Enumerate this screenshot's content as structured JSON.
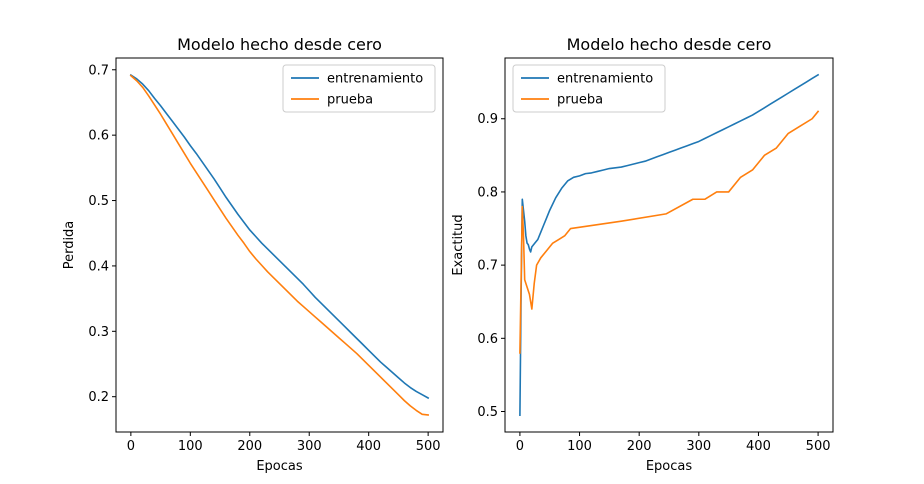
{
  "chart_data": [
    {
      "type": "line",
      "title": "Modelo hecho desde cero",
      "xlabel": "Epocas",
      "ylabel": "Perdida",
      "xlim": [
        -25,
        525
      ],
      "ylim": [
        0.146,
        0.718
      ],
      "xticks": [
        0,
        100,
        200,
        300,
        400,
        500
      ],
      "yticks": [
        0.2,
        0.3,
        0.4,
        0.5,
        0.6,
        0.7
      ],
      "xtick_labels": [
        "0",
        "100",
        "200",
        "300",
        "400",
        "500"
      ],
      "ytick_labels": [
        "0.2",
        "0.3",
        "0.4",
        "0.5",
        "0.6",
        "0.7"
      ],
      "grid": false,
      "legend_position": "top-right",
      "series": [
        {
          "name": "entrenamiento",
          "color": "#1f77b4",
          "x": [
            0,
            10,
            20,
            30,
            40,
            50,
            60,
            70,
            80,
            90,
            100,
            110,
            120,
            130,
            140,
            150,
            160,
            170,
            180,
            190,
            200,
            210,
            220,
            230,
            240,
            250,
            260,
            270,
            280,
            290,
            300,
            310,
            320,
            330,
            340,
            350,
            360,
            370,
            380,
            390,
            400,
            410,
            420,
            430,
            440,
            450,
            460,
            470,
            480,
            490,
            500
          ],
          "y": [
            0.692,
            0.686,
            0.678,
            0.668,
            0.656,
            0.645,
            0.633,
            0.621,
            0.609,
            0.597,
            0.584,
            0.572,
            0.559,
            0.546,
            0.533,
            0.519,
            0.505,
            0.492,
            0.479,
            0.467,
            0.455,
            0.445,
            0.435,
            0.426,
            0.417,
            0.408,
            0.399,
            0.39,
            0.381,
            0.372,
            0.362,
            0.352,
            0.343,
            0.334,
            0.325,
            0.316,
            0.307,
            0.298,
            0.289,
            0.28,
            0.271,
            0.262,
            0.253,
            0.245,
            0.237,
            0.229,
            0.221,
            0.214,
            0.208,
            0.203,
            0.198
          ]
        },
        {
          "name": "prueba",
          "color": "#ff7f0e",
          "x": [
            0,
            10,
            20,
            30,
            40,
            50,
            60,
            70,
            80,
            90,
            100,
            110,
            120,
            130,
            140,
            150,
            160,
            170,
            180,
            190,
            200,
            210,
            220,
            230,
            240,
            250,
            260,
            270,
            280,
            290,
            300,
            310,
            320,
            330,
            340,
            350,
            360,
            370,
            380,
            390,
            400,
            410,
            420,
            430,
            440,
            450,
            460,
            470,
            480,
            490,
            500
          ],
          "y": [
            0.691,
            0.683,
            0.673,
            0.66,
            0.646,
            0.632,
            0.617,
            0.602,
            0.587,
            0.572,
            0.557,
            0.543,
            0.529,
            0.515,
            0.501,
            0.487,
            0.473,
            0.46,
            0.447,
            0.435,
            0.422,
            0.411,
            0.401,
            0.391,
            0.382,
            0.373,
            0.364,
            0.355,
            0.346,
            0.338,
            0.33,
            0.322,
            0.314,
            0.306,
            0.298,
            0.29,
            0.282,
            0.274,
            0.266,
            0.257,
            0.248,
            0.239,
            0.23,
            0.221,
            0.212,
            0.203,
            0.194,
            0.186,
            0.179,
            0.173,
            0.172
          ]
        }
      ]
    },
    {
      "type": "line",
      "title": "Modelo hecho desde cero",
      "xlabel": "Epocas",
      "ylabel": "Exactitud",
      "xlim": [
        -25,
        525
      ],
      "ylim": [
        0.472,
        0.983
      ],
      "xticks": [
        0,
        100,
        200,
        300,
        400,
        500
      ],
      "yticks": [
        0.5,
        0.6,
        0.7,
        0.8,
        0.9
      ],
      "xtick_labels": [
        "0",
        "100",
        "200",
        "300",
        "400",
        "500"
      ],
      "ytick_labels": [
        "0.5",
        "0.6",
        "0.7",
        "0.8",
        "0.9"
      ],
      "grid": false,
      "legend_position": "top-left",
      "series": [
        {
          "name": "entrenamiento",
          "color": "#1f77b4",
          "x": [
            0,
            2,
            4,
            6,
            8,
            10,
            12,
            14,
            16,
            18,
            20,
            25,
            30,
            35,
            40,
            45,
            50,
            60,
            70,
            80,
            90,
            100,
            110,
            120,
            130,
            140,
            150,
            160,
            170,
            180,
            190,
            200,
            210,
            220,
            230,
            240,
            250,
            260,
            270,
            280,
            290,
            300,
            310,
            320,
            330,
            340,
            350,
            360,
            370,
            380,
            390,
            400,
            410,
            420,
            430,
            440,
            450,
            460,
            470,
            480,
            490,
            500
          ],
          "y": [
            0.495,
            0.66,
            0.79,
            0.775,
            0.76,
            0.74,
            0.73,
            0.728,
            0.722,
            0.718,
            0.725,
            0.73,
            0.735,
            0.745,
            0.755,
            0.765,
            0.775,
            0.792,
            0.805,
            0.815,
            0.82,
            0.822,
            0.825,
            0.826,
            0.828,
            0.83,
            0.832,
            0.833,
            0.834,
            0.836,
            0.838,
            0.84,
            0.842,
            0.845,
            0.848,
            0.851,
            0.854,
            0.857,
            0.86,
            0.863,
            0.866,
            0.869,
            0.873,
            0.877,
            0.881,
            0.885,
            0.889,
            0.893,
            0.897,
            0.901,
            0.905,
            0.91,
            0.915,
            0.92,
            0.925,
            0.93,
            0.935,
            0.94,
            0.945,
            0.95,
            0.955,
            0.96
          ]
        },
        {
          "name": "prueba",
          "color": "#ff7f0e",
          "x": [
            0,
            2,
            4,
            6,
            8,
            12,
            16,
            20,
            24,
            28,
            35,
            45,
            55,
            65,
            75,
            85,
            170,
            245,
            290,
            310,
            330,
            350,
            370,
            390,
            410,
            430,
            450,
            470,
            490,
            500
          ],
          "y": [
            0.58,
            0.68,
            0.78,
            0.74,
            0.68,
            0.67,
            0.66,
            0.64,
            0.675,
            0.7,
            0.71,
            0.72,
            0.73,
            0.735,
            0.74,
            0.75,
            0.76,
            0.77,
            0.79,
            0.79,
            0.8,
            0.8,
            0.82,
            0.83,
            0.85,
            0.86,
            0.88,
            0.89,
            0.9,
            0.91
          ]
        }
      ]
    }
  ]
}
